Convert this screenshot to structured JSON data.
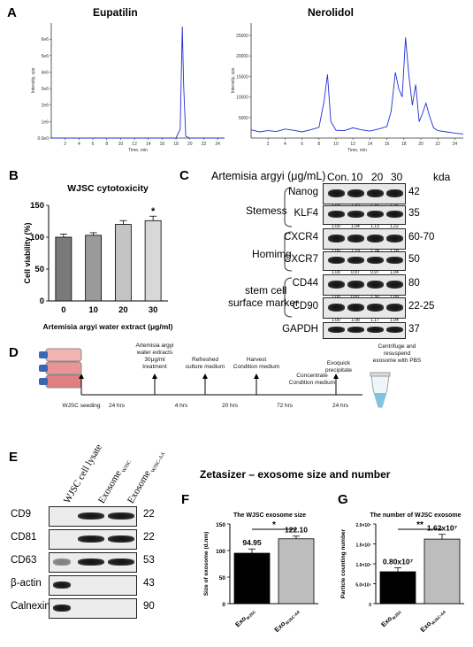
{
  "panels": {
    "A": "A",
    "B": "B",
    "C": "C",
    "D": "D",
    "E": "E",
    "F": "F",
    "G": "G"
  },
  "panel_a": {
    "left": {
      "title": "Eupatilin",
      "ylabel": "Intensity, cps",
      "xlabel": "Time, min",
      "yticks": [
        "0.0e0",
        "1e6",
        "2e6",
        "3e6",
        "4e6",
        "5e6",
        "6e6"
      ],
      "xticks": [
        "2",
        "4",
        "6",
        "8",
        "10",
        "12",
        "14",
        "16",
        "18",
        "20",
        "22",
        "24"
      ]
    },
    "right": {
      "title": "Nerolidol",
      "ylabel": "Intensity, cps",
      "xlabel": "Time, min",
      "yticks": [
        "5000",
        "10000",
        "15000",
        "20000",
        "25000"
      ],
      "xticks": [
        "2",
        "4",
        "6",
        "8",
        "10",
        "12",
        "14",
        "16",
        "18",
        "20",
        "22",
        "24"
      ]
    }
  },
  "chart_data": [
    {
      "type": "line",
      "title": "Eupatilin",
      "xlabel": "Time, min",
      "ylabel": "Intensity, cps",
      "xlim": [
        0,
        25
      ],
      "ylim": [
        0,
        6500000.0
      ],
      "x": [
        0,
        5,
        10,
        15,
        18,
        18.6,
        18.9,
        19.1,
        19.4,
        20,
        25
      ],
      "y": [
        0,
        0,
        0,
        0,
        0,
        500000.0,
        6300000.0,
        3000000.0,
        100000.0,
        0,
        0
      ]
    },
    {
      "type": "line",
      "title": "Nerolidol",
      "xlabel": "Time, min",
      "ylabel": "Intensity, cps",
      "xlim": [
        0,
        25
      ],
      "ylim": [
        0,
        28000
      ],
      "x": [
        0,
        1,
        2,
        3,
        4,
        5,
        6,
        7,
        8,
        8.6,
        9,
        9.4,
        10,
        11,
        12,
        13,
        14,
        15,
        16,
        16.5,
        17,
        17.4,
        17.8,
        18.2,
        18.6,
        19,
        19.4,
        19.8,
        20.2,
        20.6,
        21,
        21.5,
        22,
        23,
        24,
        25
      ],
      "y": [
        2000,
        1500,
        1800,
        1600,
        2200,
        1900,
        1500,
        2000,
        2600,
        9000,
        15500,
        4000,
        1900,
        1800,
        2500,
        2000,
        1700,
        2200,
        2800,
        6500,
        16000,
        12000,
        10000,
        24500,
        15000,
        8000,
        13000,
        4000,
        6000,
        8500,
        5500,
        2500,
        1800,
        1500,
        1200,
        1000
      ]
    },
    {
      "type": "bar",
      "title": "WJSC cytotoxicity",
      "xlabel": "Artemisia argyi water extract (μg/ml)",
      "ylabel": "Cell viability (%)",
      "categories": [
        "0",
        "10",
        "20",
        "30"
      ],
      "values": [
        100,
        103,
        120,
        126
      ],
      "errors": [
        5,
        4,
        6,
        7
      ],
      "ylim": [
        0,
        150
      ],
      "yticks": [
        "0",
        "50",
        "100",
        "150"
      ],
      "annotations": [
        {
          "category": "30",
          "text": "*"
        }
      ]
    },
    {
      "type": "bar",
      "title": "The WJSC exosome size",
      "ylabel": "Size of exosome (d.nm)",
      "categories": [
        "Exo",
        "Exo"
      ],
      "category_subscripts": [
        "WJSC",
        "WJSC-AA"
      ],
      "values": [
        94.95,
        122.1
      ],
      "errors": [
        8,
        5
      ],
      "ylim": [
        0,
        150
      ],
      "yticks": [
        "0",
        "50",
        "100",
        "150"
      ],
      "data_labels": [
        "94.95",
        "122.10"
      ],
      "significance": "*"
    },
    {
      "type": "bar",
      "title": "The number of WJSC exosome",
      "ylabel": "Particle counting number",
      "categories": [
        "Exo",
        "Exo"
      ],
      "category_subscripts": [
        "WJSC",
        "WJSC-AA"
      ],
      "values": [
        8000000.0,
        16200000.0
      ],
      "errors": [
        1000000.0,
        1200000.0
      ],
      "ylim": [
        0,
        20000000.0
      ],
      "yticks": [
        "0",
        "5.0×10⁶",
        "1.0×10⁷",
        "1.5×10⁷",
        "2.0×10⁷"
      ],
      "data_labels": [
        "0.80x10⁷",
        "1.62x10⁷"
      ],
      "significance": "**"
    }
  ],
  "panel_c": {
    "header": "Artemisia argyi (μg/mL)",
    "lanes": [
      "Con.",
      "10",
      "20",
      "30"
    ],
    "kda_label": "kda",
    "groups": [
      {
        "name": "Stemess"
      },
      {
        "name": "Homimg"
      },
      {
        "name": "stem cell surface marker"
      }
    ],
    "group_line1": "stem cell",
    "group_line2": "surface marker",
    "blots": [
      {
        "protein": "Nanog",
        "kda": "42",
        "quant": [
          "1.00",
          "1.32",
          "1.16",
          "1.16"
        ]
      },
      {
        "protein": "KLF4",
        "kda": "35",
        "quant": [
          "1.00",
          "1.04",
          "1.13",
          "1.22"
        ]
      },
      {
        "protein": "CXCR4",
        "kda": "60-70",
        "quant": [
          "1.00",
          "1.19",
          "1.24",
          "1.18"
        ]
      },
      {
        "protein": "CXCR7",
        "kda": "50",
        "quant": [
          "1.00",
          "0.97",
          "0.97",
          "1.04"
        ]
      },
      {
        "protein": "CD44",
        "kda": "80",
        "quant": [
          "1.00",
          "0.87",
          "1.30",
          "1.09"
        ]
      },
      {
        "protein": "CD90",
        "kda": "22-25",
        "quant": [
          "1.00",
          "1.08",
          "1.17",
          "1.04"
        ]
      },
      {
        "protein": "GAPDH",
        "kda": "37",
        "quant": []
      }
    ]
  },
  "panel_d": {
    "steps": [
      {
        "text": "WJSC seeding"
      },
      {
        "text": "Artemisia argyi water extracts 30μg/ml treatment"
      },
      {
        "text": "Refreshed culture medium"
      },
      {
        "text": "Harvest Condition medium"
      },
      {
        "text": "Concentrate Condition medium"
      },
      {
        "text": "Exoquick precipitate"
      },
      {
        "text": "Centrifuge and resuspend exosome with PBS"
      }
    ],
    "intervals": [
      "24 hrs",
      "4 hrs",
      "20 hrs",
      "72 hrs",
      "24 hrs"
    ]
  },
  "panel_e": {
    "lanes": [
      "WJSC cell lysate",
      "Exosome",
      "Exosome"
    ],
    "lane_subscripts": [
      "",
      "WJSC",
      "WJSC-AA"
    ],
    "blots": [
      {
        "protein": "CD9",
        "kda": "22"
      },
      {
        "protein": "CD81",
        "kda": "22"
      },
      {
        "protein": "CD63",
        "kda": "53"
      },
      {
        "protein": "β-actin",
        "kda": "43"
      },
      {
        "protein": "Calnexin",
        "kda": "90"
      }
    ]
  },
  "zetasizer_title": "Zetasizer – exosome size and number",
  "colors": {
    "chromatogram": "#1f2fd6",
    "bar_dark": "#7a7a7a",
    "bar_mid": "#9a9a9a",
    "bar_light": "#c4c4c4",
    "bar_lighter": "#d8d8d8",
    "bar_black": "#000000",
    "bar_gray": "#bdbdbd"
  }
}
